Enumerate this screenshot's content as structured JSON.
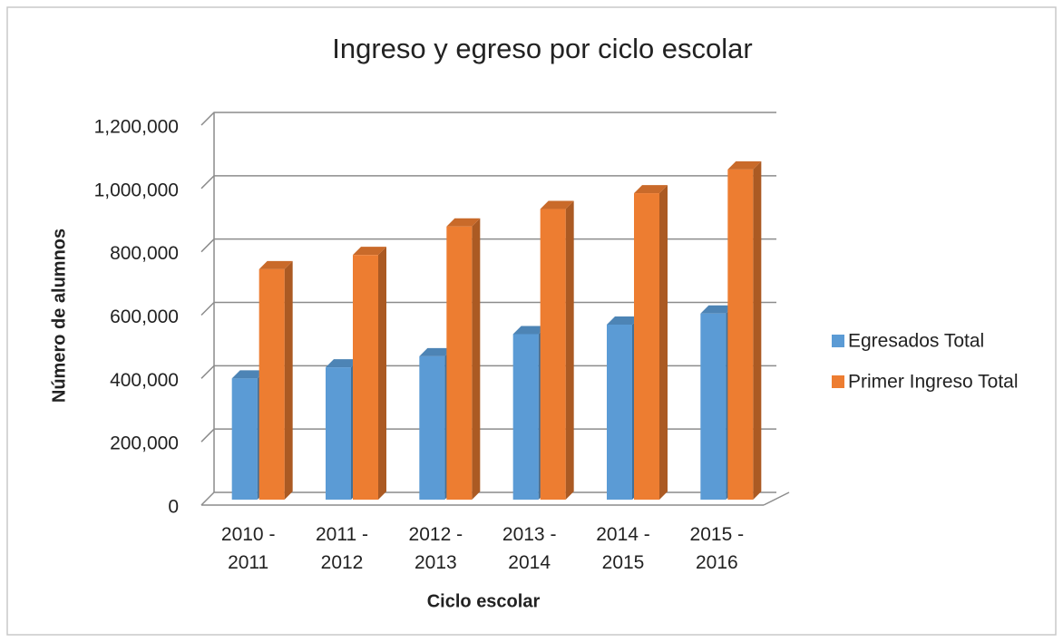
{
  "chart_data": {
    "type": "bar3d",
    "title": "Ingreso y egreso por ciclo escolar",
    "x_label": "Ciclo escolar",
    "y_label": "Número de alumnos",
    "categories": [
      "2010 - 2011",
      "2011 - 2012",
      "2012 - 2013",
      "2013 - 2014",
      "2014 - 2015",
      "2015 - 2016"
    ],
    "series": [
      {
        "name": "Egresados Total",
        "color": "#5b9bd5",
        "values": [
          400000,
          435000,
          470000,
          540000,
          570000,
          605000
        ]
      },
      {
        "name": "Primer Ingreso Total",
        "color": "#ed7d31",
        "values": [
          745000,
          790000,
          880000,
          935000,
          985000,
          1060000
        ]
      }
    ],
    "ylim": [
      0,
      1200000
    ],
    "yticks": [
      0,
      {
        "value": 200000,
        "label": "200,000"
      },
      {
        "value": 400000,
        "label": "400,000"
      },
      {
        "value": 600000,
        "label": "600,000"
      },
      {
        "value": 800000,
        "label": "800,000"
      },
      {
        "value": 1000000,
        "label": "1,000,000"
      },
      {
        "value": 1200000,
        "label": "1,200,000"
      }
    ],
    "grid": true,
    "legend": "right"
  }
}
